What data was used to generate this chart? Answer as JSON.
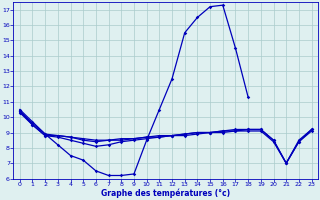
{
  "background_color": "#dff0f0",
  "grid_color": "#aacccc",
  "line_color": "#0000bb",
  "xlabel": "Graphe des températures (°c)",
  "ylim": [
    6,
    17.5
  ],
  "xlim": [
    -0.5,
    23.5
  ],
  "yticks": [
    6,
    7,
    8,
    9,
    10,
    11,
    12,
    13,
    14,
    15,
    16,
    17
  ],
  "xticks": [
    0,
    1,
    2,
    3,
    4,
    5,
    6,
    7,
    8,
    9,
    10,
    11,
    12,
    13,
    14,
    15,
    16,
    17,
    18,
    19,
    20,
    21,
    22,
    23
  ],
  "curve_main_x": [
    0,
    1,
    2,
    3,
    4,
    5,
    6,
    7,
    8,
    9,
    10,
    11,
    12,
    13,
    14,
    15,
    16,
    17,
    18
  ],
  "curve_main_y": [
    10.5,
    9.7,
    8.9,
    8.2,
    7.5,
    7.2,
    6.5,
    6.2,
    6.2,
    6.3,
    8.5,
    10.5,
    12.5,
    15.5,
    16.5,
    17.2,
    17.3,
    14.5,
    11.3
  ],
  "curve_flat1_x": [
    0,
    1,
    2,
    3,
    4,
    5,
    6,
    7,
    8,
    9,
    10,
    11,
    12,
    13,
    14,
    15,
    16,
    17,
    18,
    19,
    20,
    21,
    22,
    23
  ],
  "curve_flat1_y": [
    10.4,
    9.6,
    8.9,
    8.8,
    8.7,
    8.6,
    8.5,
    8.5,
    8.6,
    8.6,
    8.7,
    8.8,
    8.8,
    8.9,
    9.0,
    9.0,
    9.1,
    9.1,
    9.2,
    9.2,
    8.5,
    7.0,
    8.5,
    9.2
  ],
  "curve_flat2_x": [
    0,
    1,
    2,
    3,
    4,
    5,
    6,
    7,
    8,
    9,
    10,
    11,
    12,
    13,
    14,
    15,
    16,
    17,
    18,
    19,
    20,
    21,
    22,
    23
  ],
  "curve_flat2_y": [
    10.4,
    9.5,
    8.8,
    8.8,
    8.7,
    8.5,
    8.4,
    8.5,
    8.5,
    8.6,
    8.7,
    8.7,
    8.8,
    8.9,
    9.0,
    9.0,
    9.1,
    9.2,
    9.2,
    9.2,
    8.5,
    7.0,
    8.4,
    9.2
  ],
  "curve_min_x": [
    0,
    1,
    2,
    3,
    4,
    5,
    6,
    7,
    8,
    9,
    10,
    11,
    12,
    13,
    14,
    15,
    16,
    17,
    18,
    19,
    20,
    21,
    22,
    23
  ],
  "curve_min_y": [
    10.3,
    9.5,
    8.8,
    8.7,
    8.5,
    8.3,
    8.1,
    8.2,
    8.4,
    8.5,
    8.6,
    8.7,
    8.8,
    8.8,
    8.9,
    9.0,
    9.0,
    9.1,
    9.1,
    9.1,
    8.4,
    7.0,
    8.4,
    9.1
  ]
}
